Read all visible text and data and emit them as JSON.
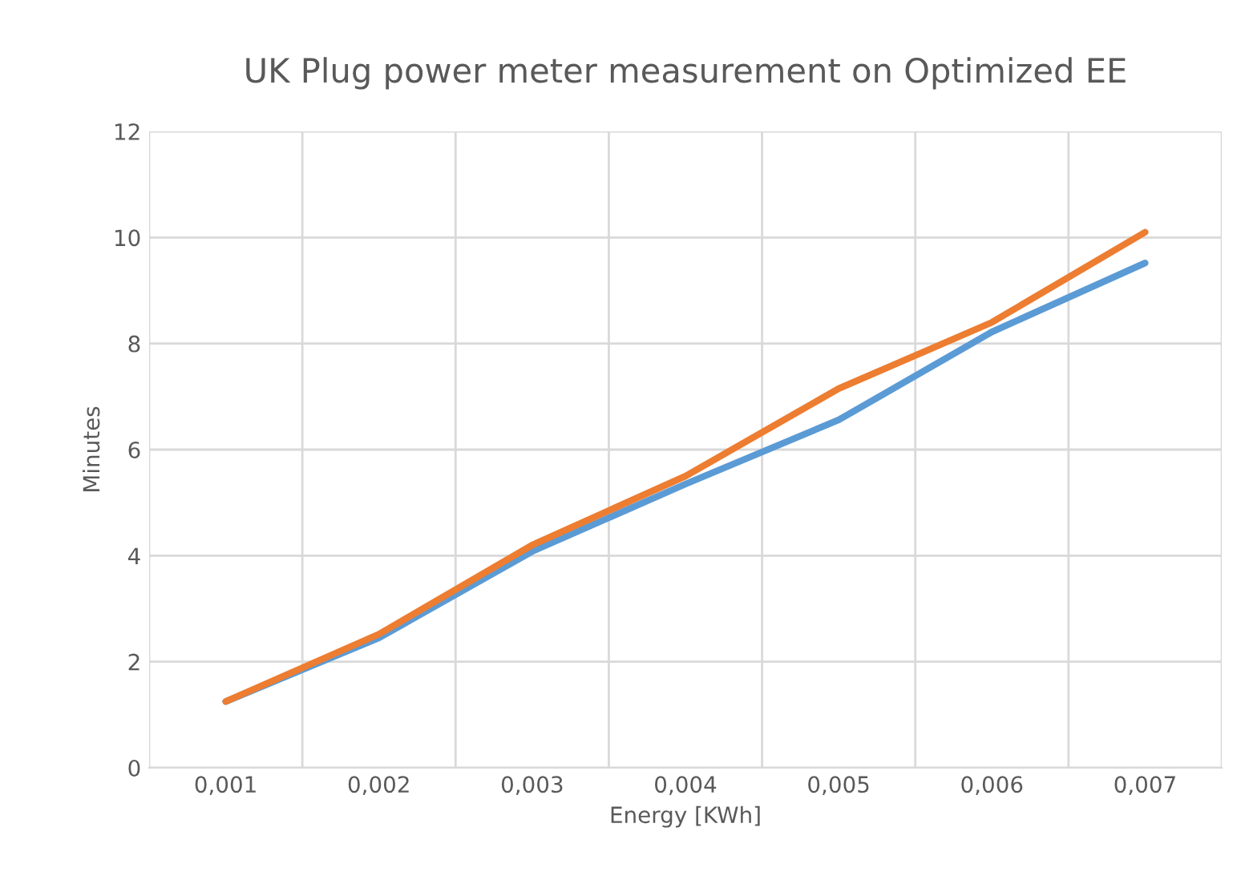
{
  "chart_data": {
    "type": "line",
    "title": "UK Plug power meter measurement on Optimized EE",
    "xlabel": "Energy [KWh]",
    "ylabel": "Minutes",
    "categories": [
      "0,001",
      "0,002",
      "0,003",
      "0,004",
      "0,005",
      "0,006",
      "0,007"
    ],
    "series": [
      {
        "color": "#5b9bd5",
        "values": [
          1.25,
          2.45,
          4.08,
          5.35,
          6.56,
          8.22,
          9.52
        ]
      },
      {
        "color": "#ed7d31",
        "values": [
          1.25,
          2.52,
          4.2,
          5.5,
          7.15,
          8.4,
          10.1
        ]
      }
    ],
    "ylim": [
      0,
      12
    ],
    "yticks": [
      0,
      2,
      4,
      6,
      8,
      10,
      12
    ],
    "grid": true,
    "marker": "none",
    "line_style": "solid",
    "legend": false
  }
}
